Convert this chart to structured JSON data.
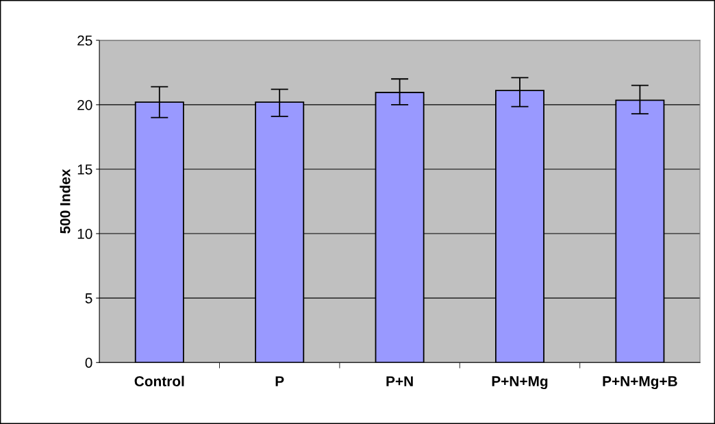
{
  "chart_data": {
    "type": "bar",
    "ylabel": "500 Index",
    "categories": [
      "Control",
      "P",
      "P+N",
      "P+N+Mg",
      "P+N+Mg+B"
    ],
    "values": [
      20.2,
      20.2,
      20.95,
      21.1,
      20.35
    ],
    "errors": [
      [
        19.0,
        21.4
      ],
      [
        19.1,
        21.2
      ],
      [
        20.0,
        22.0
      ],
      [
        19.85,
        22.1
      ],
      [
        19.3,
        21.5
      ]
    ],
    "color": "#9999ff",
    "ylim": [
      0,
      25
    ],
    "yticks": [
      0,
      5,
      10,
      15,
      20,
      25
    ],
    "grid": "y"
  }
}
